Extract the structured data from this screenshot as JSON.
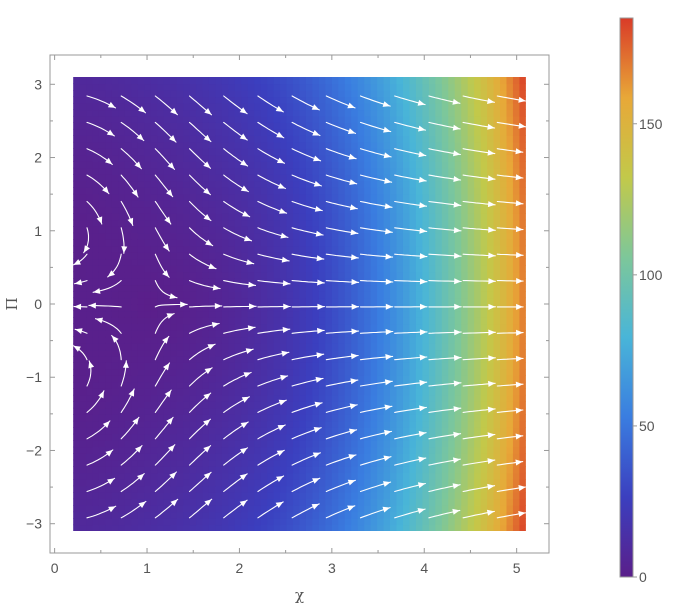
{
  "chart_data": {
    "type": "heatmap",
    "subtype": "stream-density-plot",
    "title": "",
    "xlabel": "χ",
    "ylabel": "Π",
    "xlim": [
      0.2,
      5.1
    ],
    "ylim": [
      -3.1,
      3.1
    ],
    "frame_xlim": [
      -0.05,
      5.35
    ],
    "frame_ylim": [
      -3.4,
      3.4
    ],
    "x_ticks": [
      0,
      1,
      2,
      3,
      4,
      5
    ],
    "x_tick_labels": [
      "0",
      "1",
      "2",
      "3",
      "4",
      "5"
    ],
    "y_ticks": [
      -3,
      -2,
      -1,
      0,
      1,
      2,
      3
    ],
    "y_tick_labels": [
      "−3",
      "−2",
      "−1",
      "0",
      "1",
      "2",
      "3"
    ],
    "colorbar": {
      "range": [
        0,
        185
      ],
      "ticks": [
        0,
        50,
        100,
        150
      ],
      "tick_labels": [
        "0",
        "50",
        "100",
        "150"
      ],
      "colormap": "rainbow",
      "colors": [
        "#5a1f8a",
        "#3b3fbf",
        "#3a7de0",
        "#49b5d8",
        "#7dc79a",
        "#c2c94a",
        "#e8a838",
        "#d93b28"
      ]
    },
    "field": {
      "magnitude_minimum_at": [
        0.5,
        0
      ],
      "magnitude_max_approx": 185,
      "stream_color": "#ffffff"
    },
    "grid": false,
    "legend": "right colorbar"
  }
}
